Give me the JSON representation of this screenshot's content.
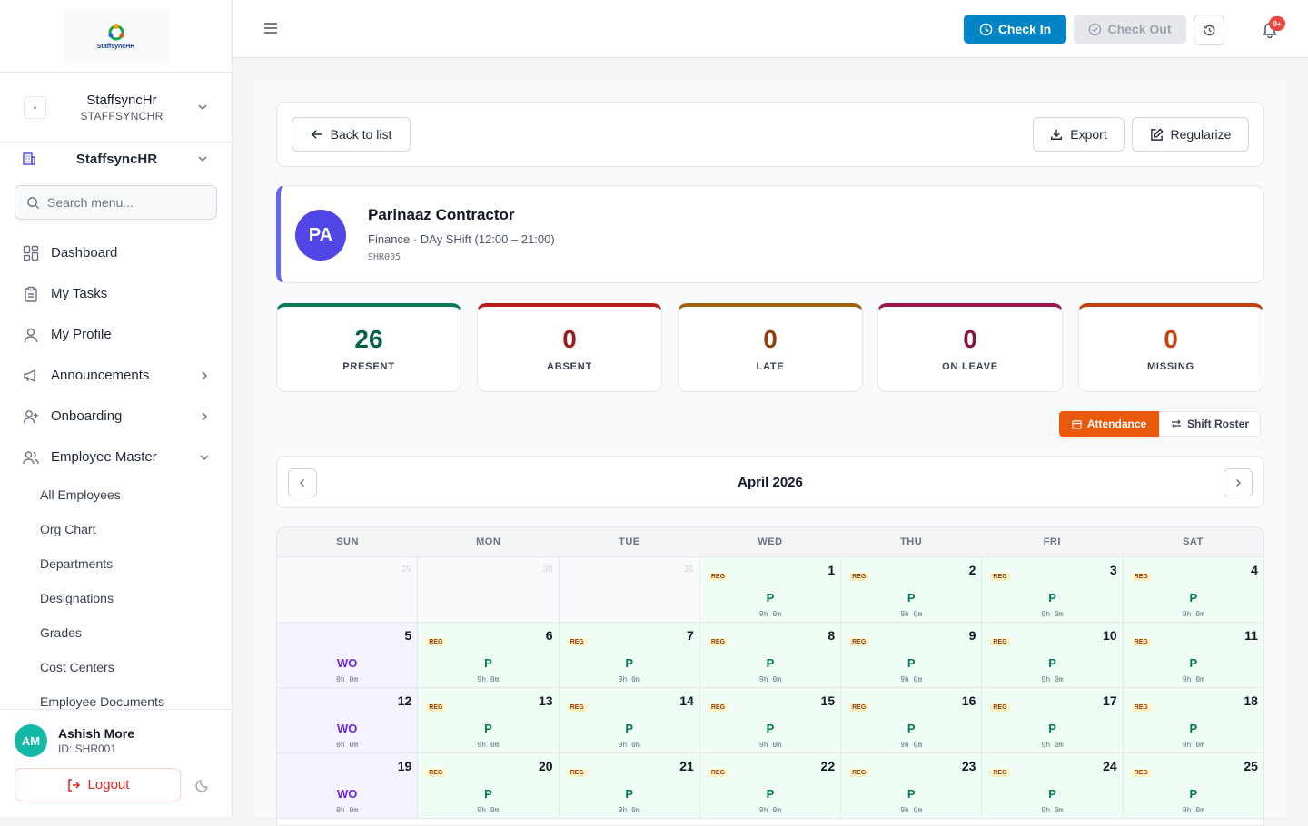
{
  "app": {
    "logo_text": "StaffsyncHR",
    "org_name": "StaffsyncHr",
    "org_code": "STAFFSYNCHR",
    "module_name": "StaffsyncHR",
    "search_placeholder": "Search menu..."
  },
  "menu": {
    "items": [
      "Dashboard",
      "My Tasks",
      "My Profile",
      "Announcements",
      "Onboarding",
      "Employee Master"
    ],
    "sub_items": [
      "All Employees",
      "Org Chart",
      "Departments",
      "Designations",
      "Grades",
      "Cost Centers",
      "Employee Documents"
    ]
  },
  "user": {
    "initials": "AM",
    "name": "Ashish More",
    "id": "ID: SHR001",
    "logout": "Logout"
  },
  "topbar": {
    "check_in": "Check In",
    "check_out": "Check Out",
    "notif_badge": "9+"
  },
  "toolbar": {
    "back": "Back to list",
    "export": "Export",
    "regularize": "Regularize"
  },
  "employee": {
    "initials": "PA",
    "name": "Parinaaz Contractor",
    "dept_shift": "Finance · DAy SHift (12:00 – 21:00)",
    "code": "SHR005"
  },
  "stats": [
    {
      "value": "26",
      "label": "PRESENT",
      "color": "#065f46",
      "bar": "#047857"
    },
    {
      "value": "0",
      "label": "ABSENT",
      "color": "#991b1b",
      "bar": "#b91c1c"
    },
    {
      "value": "0",
      "label": "LATE",
      "color": "#92400e",
      "bar": "#a16207"
    },
    {
      "value": "0",
      "label": "ON LEAVE",
      "color": "#831843",
      "bar": "#9d174d"
    },
    {
      "value": "0",
      "label": "MISSING",
      "color": "#c2410c",
      "bar": "#c2410c"
    }
  ],
  "view_toggle": {
    "attendance": "Attendance",
    "shift_roster": "Shift Roster"
  },
  "calendar": {
    "month": "April 2026",
    "weekdays": [
      "SUN",
      "MON",
      "TUE",
      "WED",
      "THU",
      "FRI",
      "SAT"
    ],
    "weeks": [
      [
        {
          "d": "29",
          "type": "out"
        },
        {
          "d": "30",
          "type": "out"
        },
        {
          "d": "31",
          "type": "out"
        },
        {
          "d": "1",
          "type": "pres",
          "tag": "REG",
          "status": "P",
          "hrs": "9h 0m"
        },
        {
          "d": "2",
          "type": "pres",
          "tag": "REG",
          "status": "P",
          "hrs": "9h 0m"
        },
        {
          "d": "3",
          "type": "pres",
          "tag": "REG",
          "status": "P",
          "hrs": "9h 0m"
        },
        {
          "d": "4",
          "type": "pres",
          "tag": "REG",
          "status": "P",
          "hrs": "9h 0m"
        }
      ],
      [
        {
          "d": "5",
          "type": "wo",
          "status": "WO",
          "hrs": "0h 0m"
        },
        {
          "d": "6",
          "type": "pres",
          "tag": "REG",
          "status": "P",
          "hrs": "9h 0m"
        },
        {
          "d": "7",
          "type": "pres",
          "tag": "REG",
          "status": "P",
          "hrs": "9h 0m"
        },
        {
          "d": "8",
          "type": "pres",
          "tag": "REG",
          "status": "P",
          "hrs": "9h 0m"
        },
        {
          "d": "9",
          "type": "pres",
          "tag": "REG",
          "status": "P",
          "hrs": "9h 0m"
        },
        {
          "d": "10",
          "type": "pres",
          "tag": "REG",
          "status": "P",
          "hrs": "9h 0m"
        },
        {
          "d": "11",
          "type": "pres",
          "tag": "REG",
          "status": "P",
          "hrs": "9h 0m"
        }
      ],
      [
        {
          "d": "12",
          "type": "wo",
          "status": "WO",
          "hrs": "0h 0m"
        },
        {
          "d": "13",
          "type": "pres",
          "tag": "REG",
          "status": "P",
          "hrs": "9h 0m"
        },
        {
          "d": "14",
          "type": "pres",
          "tag": "REG",
          "status": "P",
          "hrs": "9h 0m"
        },
        {
          "d": "15",
          "type": "pres",
          "tag": "REG",
          "status": "P",
          "hrs": "9h 0m"
        },
        {
          "d": "16",
          "type": "pres",
          "tag": "REG",
          "status": "P",
          "hrs": "9h 0m"
        },
        {
          "d": "17",
          "type": "pres",
          "tag": "REG",
          "status": "P",
          "hrs": "9h 0m"
        },
        {
          "d": "18",
          "type": "pres",
          "tag": "REG",
          "status": "P",
          "hrs": "9h 0m"
        }
      ],
      [
        {
          "d": "19",
          "type": "wo",
          "status": "WO",
          "hrs": "0h 0m"
        },
        {
          "d": "20",
          "type": "pres",
          "tag": "REG",
          "status": "P",
          "hrs": "9h 0m"
        },
        {
          "d": "21",
          "type": "pres",
          "tag": "REG",
          "status": "P",
          "hrs": "9h 0m"
        },
        {
          "d": "22",
          "type": "pres",
          "tag": "REG",
          "status": "P",
          "hrs": "9h 0m"
        },
        {
          "d": "23",
          "type": "pres",
          "tag": "REG",
          "status": "P",
          "hrs": "9h 0m"
        },
        {
          "d": "24",
          "type": "pres",
          "tag": "REG",
          "status": "P",
          "hrs": "9h 0m"
        },
        {
          "d": "25",
          "type": "pres",
          "tag": "REG",
          "status": "P",
          "hrs": "9h 0m"
        }
      ]
    ]
  }
}
